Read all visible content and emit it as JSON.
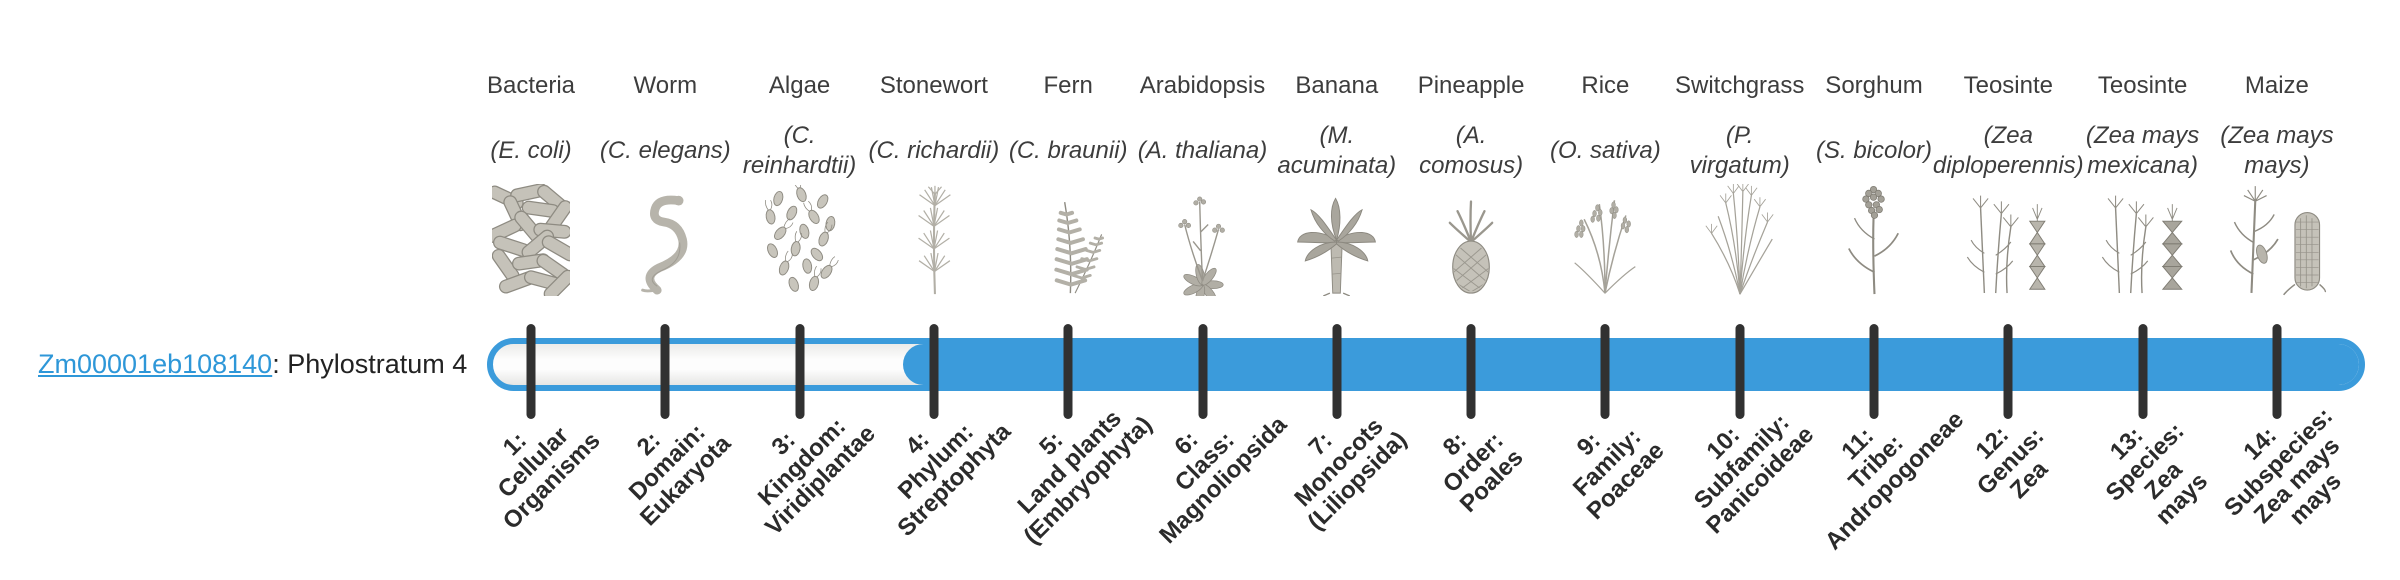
{
  "gene": {
    "id": "Zm00001eb108140",
    "suffix": ": Phylostratum 4"
  },
  "timeline": {
    "strata_count": 14,
    "filled_from_stratum": 4,
    "filled_to_stratum": 14
  },
  "colors": {
    "bar_blue": "#3b9bdb",
    "link_blue": "#2e97d8",
    "tick": "#313131",
    "text_dark": "#3d3d3d",
    "stage_text": "#2b2b2b"
  },
  "columns": [
    {
      "species": "Bacteria",
      "latin": "(E. coli)",
      "icon": "bacteria-illustration",
      "stage": "1:\nCellular\nOrganisms"
    },
    {
      "species": "Worm",
      "latin": "(C. elegans)",
      "icon": "worm-illustration",
      "stage": "2:\nDomain:\nEukaryota"
    },
    {
      "species": "Algae",
      "latin": "(C.\nreinhardtii)",
      "icon": "algae-illustration",
      "stage": "3:\nKingdom:\nViridiplantae"
    },
    {
      "species": "Stonewort",
      "latin": "(C. richardii)",
      "icon": "stonewort-illustration",
      "stage": "4:\nPhylum:\nStreptophyta"
    },
    {
      "species": "Fern",
      "latin": "(C. braunii)",
      "icon": "fern-illustration",
      "stage": "5:\nLand plants\n(Embryophyta)"
    },
    {
      "species": "Arabidopsis",
      "latin": "(A. thaliana)",
      "icon": "arabidopsis-illustration",
      "stage": "6:\nClass:\nMagnoliopsida"
    },
    {
      "species": "Banana",
      "latin": "(M.\nacuminata)",
      "icon": "banana-illustration",
      "stage": "7:\nMonocots\n(Liliopsida)"
    },
    {
      "species": "Pineapple",
      "latin": "(A.\ncomosus)",
      "icon": "pineapple-illustration",
      "stage": "8:\nOrder:\nPoales"
    },
    {
      "species": "Rice",
      "latin": "(O. sativa)",
      "icon": "rice-illustration",
      "stage": "9:\nFamily:\nPoaceae"
    },
    {
      "species": "Switchgrass",
      "latin": "(P.\nvirgatum)",
      "icon": "switchgrass-illustration",
      "stage": "10:\nSubfamily:\nPanicoideae"
    },
    {
      "species": "Sorghum",
      "latin": "(S. bicolor)",
      "icon": "sorghum-illustration",
      "stage": "11:\nTribe:\nAndropogoneae"
    },
    {
      "species": "Teosinte",
      "latin": "(Zea\ndiploperennis)",
      "icon": "teosinte-diploperennis-illustration",
      "stage": "12:\nGenus:\nZea"
    },
    {
      "species": "Teosinte",
      "latin": "(Zea mays\nmexicana)",
      "icon": "teosinte-mexicana-illustration",
      "stage": "13:\nSpecies:\nZea\nmays"
    },
    {
      "species": "Maize",
      "latin": "(Zea mays\nmays)",
      "icon": "maize-illustration",
      "stage": "14:\nSubspecies:\nZea mays\nmays"
    }
  ]
}
